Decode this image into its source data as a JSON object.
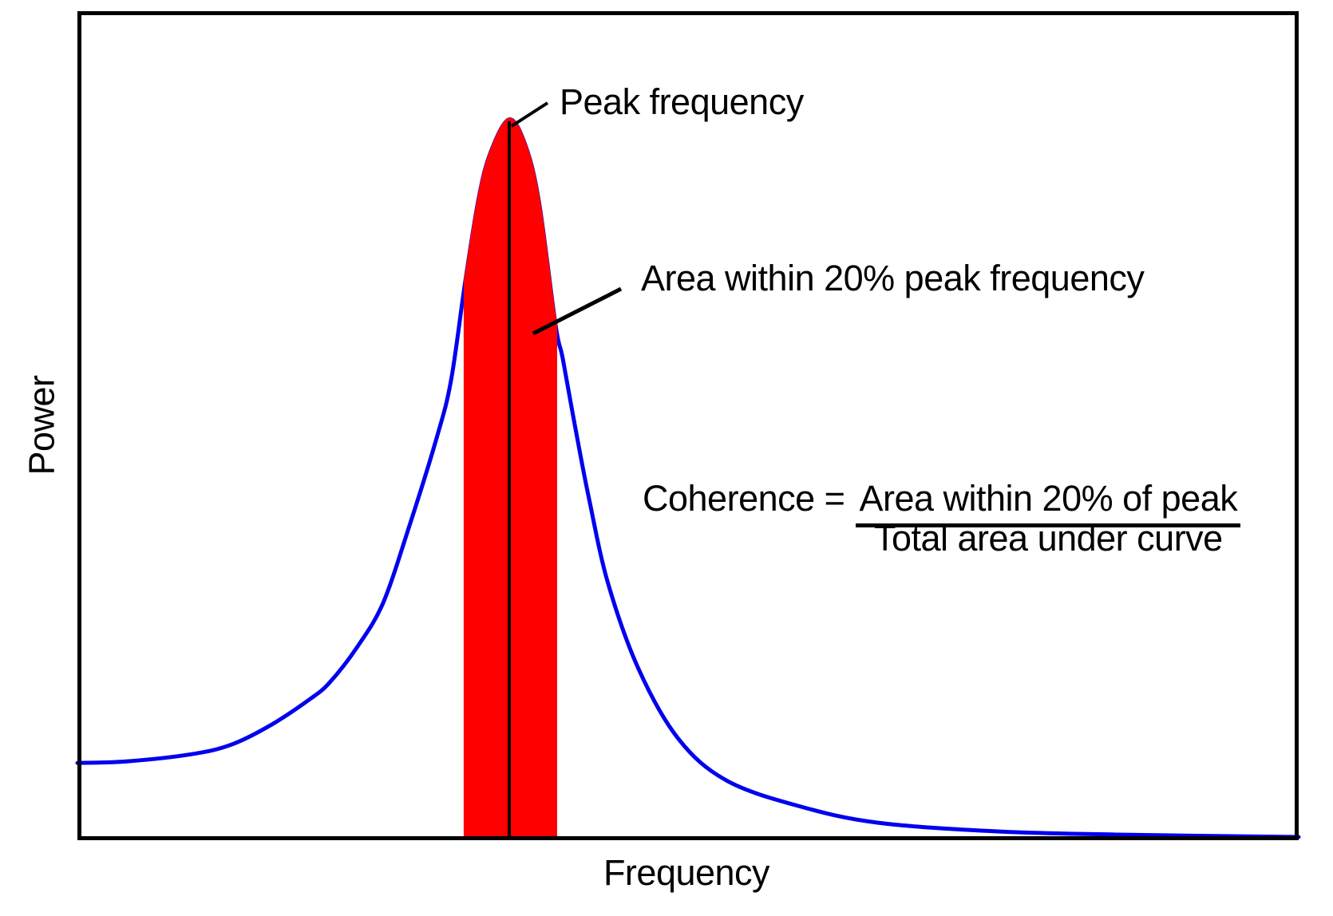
{
  "labels": {
    "y_axis": "Power",
    "x_axis": "Frequency",
    "peak_callout": "Peak frequency",
    "area_callout": "Area within 20% peak frequency"
  },
  "formula": {
    "lhs": "Coherence =",
    "numerator": "Area within 20% of peak",
    "denominator": "Total area under curve"
  },
  "colors": {
    "curve": "#0000ee",
    "shaded_area": "#ff0000",
    "peak_line": "#000000",
    "frame": "#000000",
    "text": "#000000",
    "background": "#ffffff"
  },
  "chart_data": {
    "type": "area",
    "title": "",
    "xlabel": "Frequency",
    "ylabel": "Power",
    "x_range": [
      0,
      1
    ],
    "y_range": [
      0,
      1
    ],
    "axis_units": "arbitrary (schematic spectrum, no tick labels)",
    "grid": false,
    "legend": false,
    "peak_frequency_x": 0.3536,
    "peak_power": 0.8691,
    "shaded_band_x": [
      0.3176,
      0.3915
    ],
    "shaded_band_meaning": "Area within 20% of peak frequency",
    "coherence_definition": "Coherence = Area within 20% of peak / Total area under curve",
    "curve_points": [
      [
        0.0,
        0.0914
      ],
      [
        0.0412,
        0.0934
      ],
      [
        0.0935,
        0.102
      ],
      [
        0.1261,
        0.1136
      ],
      [
        0.1588,
        0.1376
      ],
      [
        0.1902,
        0.1684
      ],
      [
        0.2065,
        0.1886
      ],
      [
        0.2288,
        0.231
      ],
      [
        0.2503,
        0.2849
      ],
      [
        0.2719,
        0.3783
      ],
      [
        0.2941,
        0.4841
      ],
      [
        0.3059,
        0.5534
      ],
      [
        0.3176,
        0.6737
      ],
      [
        0.3288,
        0.7758
      ],
      [
        0.3386,
        0.8306
      ],
      [
        0.3536,
        0.8691
      ],
      [
        0.3667,
        0.8383
      ],
      [
        0.3778,
        0.7709
      ],
      [
        0.3915,
        0.6208
      ],
      [
        0.3974,
        0.5804
      ],
      [
        0.4072,
        0.5005
      ],
      [
        0.419,
        0.41
      ],
      [
        0.4346,
        0.308
      ],
      [
        0.4595,
        0.205
      ],
      [
        0.4922,
        0.1203
      ],
      [
        0.5314,
        0.0703
      ],
      [
        0.5902,
        0.0395
      ],
      [
        0.6556,
        0.0192
      ],
      [
        0.7536,
        0.0087
      ],
      [
        0.8517,
        0.0048
      ],
      [
        1.0,
        0.0019
      ]
    ],
    "annotations": [
      {
        "text": "Peak frequency",
        "points_to": "peak of curve"
      },
      {
        "text": "Area within 20% peak frequency",
        "points_to": "red shaded region"
      }
    ]
  }
}
